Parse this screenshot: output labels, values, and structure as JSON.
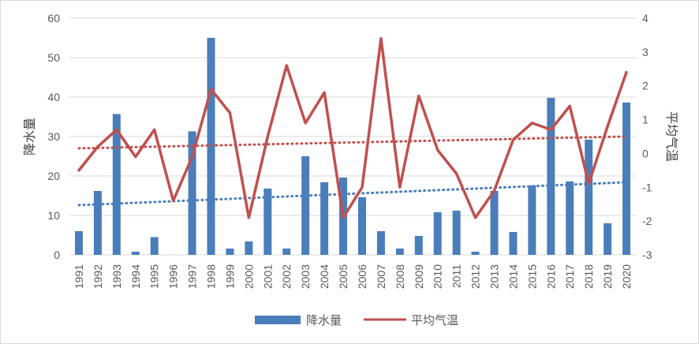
{
  "chart_data": {
    "type": "bar+line",
    "categories": [
      "1991",
      "1992",
      "1993",
      "1994",
      "1995",
      "1996",
      "1997",
      "1998",
      "1999",
      "2000",
      "2001",
      "2002",
      "2003",
      "2004",
      "2005",
      "2006",
      "2007",
      "2008",
      "2009",
      "2010",
      "2011",
      "2012",
      "2013",
      "2014",
      "2015",
      "2016",
      "2017",
      "2018",
      "2019",
      "2020"
    ],
    "series": [
      {
        "name": "降水量",
        "type": "bar",
        "axis": "left",
        "color": "#4a7ebb",
        "values": [
          6,
          16.2,
          35.7,
          0.8,
          4.5,
          0,
          31.3,
          55,
          1.6,
          3.4,
          16.8,
          1.6,
          25,
          18.4,
          19.6,
          14.6,
          6,
          1.6,
          4.8,
          10.8,
          11.2,
          0.8,
          16.2,
          5.8,
          17.6,
          39.8,
          18.6,
          29.2,
          8,
          38.6
        ]
      },
      {
        "name": "平均气温",
        "type": "line",
        "axis": "right",
        "color": "#c0504d",
        "values": [
          -0.5,
          0.2,
          0.7,
          -0.1,
          0.7,
          -1.4,
          -0.1,
          1.9,
          1.2,
          -1.9,
          0.5,
          2.6,
          0.9,
          1.8,
          -1.9,
          -1,
          3.4,
          -1,
          1.7,
          0.1,
          -0.6,
          -1.9,
          -1.1,
          0.4,
          0.9,
          0.7,
          1.4,
          -0.9,
          0.8,
          2.4
        ]
      }
    ],
    "trendlines": [
      {
        "series": "降水量",
        "color": "#4a7ebb",
        "start": 12.6,
        "end": 18.4
      },
      {
        "series": "平均气温",
        "color": "#c0504d",
        "start": 0.15,
        "end": 0.5
      }
    ],
    "ylabel": "降水量",
    "y2label": "平均气温",
    "ylim": [
      0,
      60
    ],
    "y2lim": [
      -3,
      4
    ],
    "yticks": [
      0,
      10,
      20,
      30,
      40,
      50,
      60
    ],
    "y2ticks": [
      -3,
      -2,
      -1,
      0,
      1,
      2,
      3,
      4
    ],
    "grid": true,
    "legend_position": "bottom"
  }
}
